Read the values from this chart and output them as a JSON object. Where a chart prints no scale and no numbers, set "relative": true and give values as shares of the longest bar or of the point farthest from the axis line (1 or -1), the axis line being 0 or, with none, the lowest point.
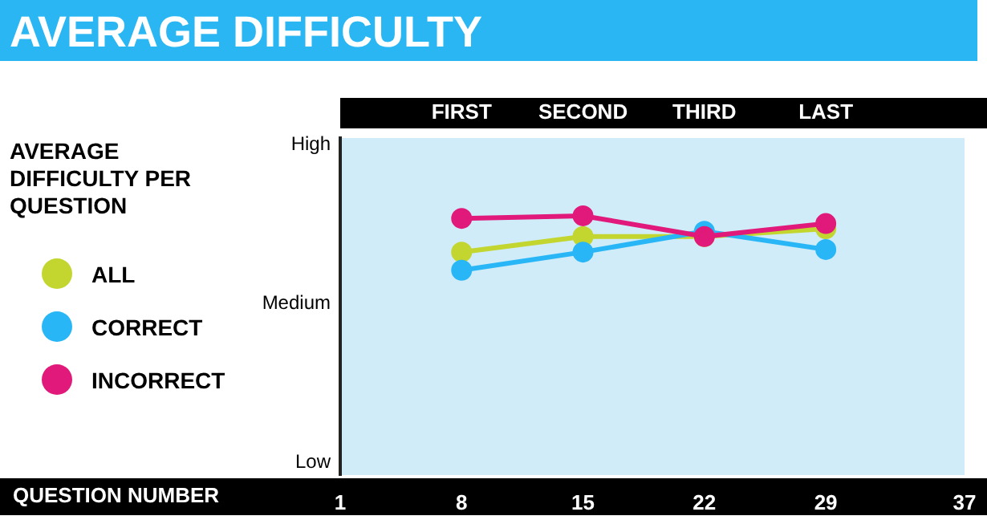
{
  "chart_data": {
    "type": "line",
    "title": "AVERAGE DIFFICULTY",
    "legend_title": "AVERAGE DIFFICULTY PER QUESTION",
    "x": [
      8,
      15,
      22,
      29
    ],
    "series": [
      {
        "name": "ALL",
        "color": "#c3d62f",
        "values": [
          0.86,
          0.92,
          0.92,
          0.95
        ]
      },
      {
        "name": "CORRECT",
        "color": "#29b6f6",
        "values": [
          0.79,
          0.86,
          0.94,
          0.87
        ]
      },
      {
        "name": "INCORRECT",
        "color": "#e0197a",
        "values": [
          0.99,
          1,
          0.92,
          0.97
        ]
      }
    ],
    "relative": true,
    "xlim": [
      1,
      37
    ],
    "xticks": [
      1,
      8,
      15,
      22,
      29,
      37
    ],
    "annotations": [
      "FIRST",
      "SECOND",
      "THIRD",
      "LAST",
      "High",
      "Medium",
      "Low",
      "QUESTION NUMBER"
    ],
    "grid": false,
    "legend": "left",
    "marker": "circle",
    "line_style": "solid"
  }
}
